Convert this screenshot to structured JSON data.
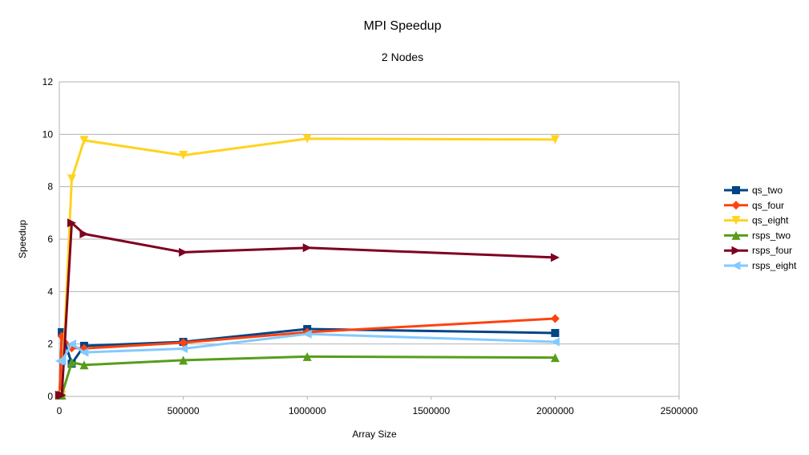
{
  "chart_data": {
    "type": "line",
    "title": "MPI Speedup",
    "subtitle": "2 Nodes",
    "xlabel": "Array Size",
    "ylabel": "Speedup",
    "xlim": [
      0,
      2500000
    ],
    "ylim": [
      0,
      12
    ],
    "xticks": [
      0,
      500000,
      1000000,
      1500000,
      2000000,
      2500000
    ],
    "yticks": [
      0,
      2,
      4,
      6,
      8,
      10,
      12
    ],
    "grid": "horizontal",
    "legend_position": "right",
    "x": [
      1000,
      10000,
      50000,
      100000,
      500000,
      1000000,
      2000000
    ],
    "series": [
      {
        "name": "qs_two",
        "color": "#004586",
        "marker": "square",
        "values": [
          0.05,
          2.45,
          1.25,
          1.93,
          2.08,
          2.57,
          2.42
        ]
      },
      {
        "name": "qs_four",
        "color": "#ff420e",
        "marker": "diamond",
        "values": [
          0.05,
          2.3,
          1.85,
          1.83,
          2.05,
          2.45,
          2.97
        ]
      },
      {
        "name": "qs_eight",
        "color": "#ffd320",
        "marker": "triangle-down",
        "values": [
          0.05,
          0.05,
          8.3,
          9.77,
          9.2,
          9.83,
          9.8
        ]
      },
      {
        "name": "rsps_two",
        "color": "#579d1c",
        "marker": "triangle-up",
        "values": [
          0.05,
          0.05,
          1.3,
          1.2,
          1.38,
          1.52,
          1.48
        ]
      },
      {
        "name": "rsps_four",
        "color": "#7e0021",
        "marker": "triangle-right",
        "values": [
          0.05,
          0.05,
          6.62,
          6.2,
          5.5,
          5.67,
          5.3
        ]
      },
      {
        "name": "rsps_eight",
        "color": "#83caff",
        "marker": "triangle-left",
        "values": [
          1.35,
          1.35,
          2.0,
          1.68,
          1.82,
          2.38,
          2.08
        ]
      }
    ]
  }
}
